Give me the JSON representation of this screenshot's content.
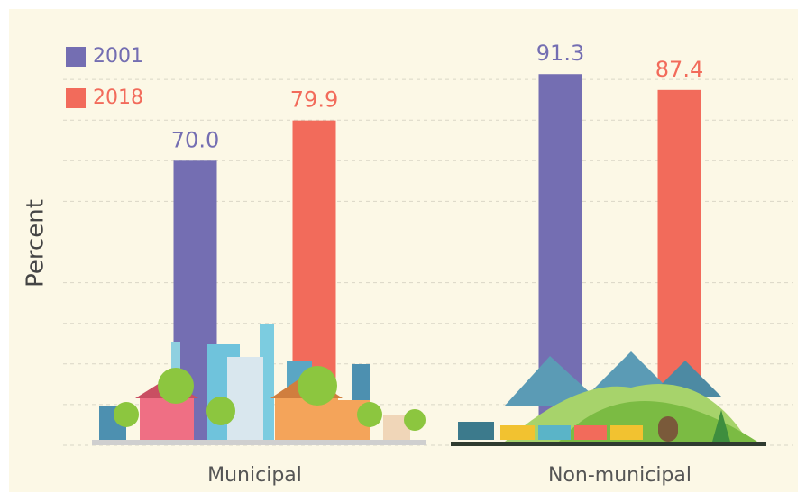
{
  "chart_data": {
    "type": "bar",
    "categories": [
      "Municipal",
      "Non-municipal"
    ],
    "series": [
      {
        "name": "2001",
        "color": "#746eb2",
        "values": [
          70.0,
          91.3
        ],
        "value_labels": [
          "70.0",
          "91.3"
        ]
      },
      {
        "name": "2018",
        "color": "#f26b5b",
        "values": [
          79.9,
          87.4
        ],
        "value_labels": [
          "79.9",
          "87.4"
        ]
      }
    ],
    "y_label": "Percent",
    "ylim": [
      0,
      100
    ],
    "grid": true,
    "legend": "top-left"
  }
}
